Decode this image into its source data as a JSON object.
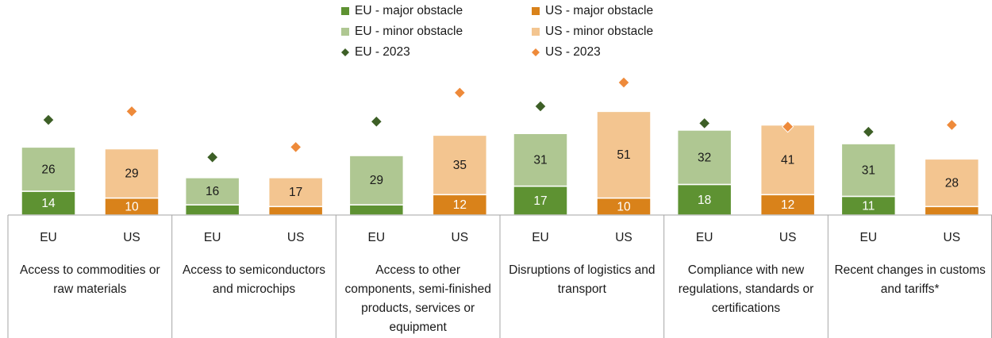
{
  "chart_data": {
    "type": "bar",
    "categories": [
      "Access to commodities or raw materials",
      "Access to semiconductors and microchips",
      "Access to other components, semi-finished products, services or equipment",
      "Disruptions of logistics and transport",
      "Compliance with new regulations, standards or certifications",
      "Recent changes in customs and tariffs*"
    ],
    "groups": [
      {
        "name": "EU",
        "series": [
          {
            "name": "EU - major obstacle",
            "kind": "bar",
            "color": "#5e9232",
            "values": [
              14,
              6,
              6,
              17,
              18,
              11
            ],
            "value_labels": [
              "14",
              null,
              null,
              "17",
              "18",
              "11"
            ]
          },
          {
            "name": "EU - minor obstacle",
            "kind": "bar",
            "color": "#afc792",
            "values": [
              26,
              16,
              29,
              31,
              32,
              31
            ],
            "value_labels": [
              "26",
              "16",
              "29",
              "31",
              "32",
              "31"
            ]
          },
          {
            "name": "EU - 2023",
            "kind": "diamond",
            "color": "#3d5f26",
            "values": [
              56,
              34,
              55,
              64,
              54,
              49
            ]
          }
        ]
      },
      {
        "name": "US",
        "series": [
          {
            "name": "US - major obstacle",
            "kind": "bar",
            "color": "#d9821a",
            "values": [
              10,
              5,
              12,
              10,
              12,
              5
            ],
            "value_labels": [
              "10",
              null,
              "12",
              "10",
              "12",
              null
            ]
          },
          {
            "name": "US - minor obstacle",
            "kind": "bar",
            "color": "#f3c590",
            "values": [
              29,
              17,
              35,
              51,
              41,
              28
            ],
            "value_labels": [
              "29",
              "17",
              "35",
              "51",
              "41",
              "28"
            ]
          },
          {
            "name": "US - 2023",
            "kind": "diamond",
            "color": "#ee8a3a",
            "values": [
              61,
              40,
              72,
              78,
              52,
              53
            ]
          }
        ]
      }
    ]
  }
}
